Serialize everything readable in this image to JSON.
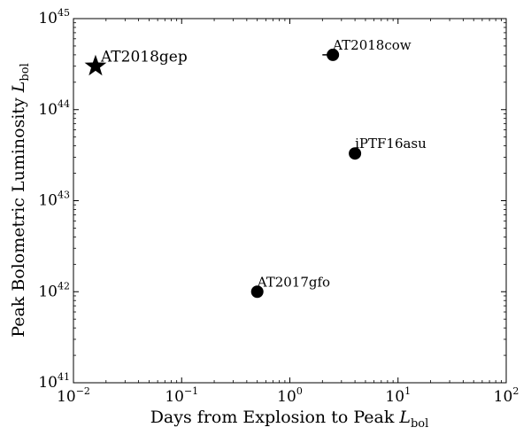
{
  "chart_data": {
    "type": "scatter",
    "xscale": "log",
    "yscale": "log",
    "xlim": [
      0.01,
      100
    ],
    "ylim": [
      1e+41,
      1e+45
    ],
    "xlabel": "Days from Explosion to Peak",
    "xlabel_symbol": "L",
    "xlabel_subscript": "bol",
    "ylabel": "Peak Bolometric Luminosity",
    "ylabel_symbol": "L",
    "ylabel_subscript": "bol",
    "x_ticks": [
      {
        "value": 0.01,
        "base": "10",
        "exp": "−2"
      },
      {
        "value": 0.1,
        "base": "10",
        "exp": "−1"
      },
      {
        "value": 1,
        "base": "10",
        "exp": "0"
      },
      {
        "value": 10,
        "base": "10",
        "exp": "1"
      },
      {
        "value": 100,
        "base": "10",
        "exp": "2"
      }
    ],
    "y_ticks": [
      {
        "value": 1e+41,
        "base": "10",
        "exp": "41"
      },
      {
        "value": 1e+42,
        "base": "10",
        "exp": "42"
      },
      {
        "value": 1e+43,
        "base": "10",
        "exp": "43"
      },
      {
        "value": 1e+44,
        "base": "10",
        "exp": "44"
      },
      {
        "value": 1e+45,
        "base": "10",
        "exp": "45"
      }
    ],
    "points": [
      {
        "label": "AT2018gep",
        "x": 0.016,
        "y": 3e+44,
        "marker": "star",
        "color": "#000000"
      },
      {
        "label": "AT2018cow",
        "x": 2.5,
        "y": 4e+44,
        "marker": "circle",
        "color": "#000000",
        "x_err_low": 0.5
      },
      {
        "label": "iPTF16asu",
        "x": 4.0,
        "y": 3.3e+43,
        "marker": "circle",
        "color": "#000000"
      },
      {
        "label": "AT2017gfo",
        "x": 0.5,
        "y": 1e+42,
        "marker": "circle",
        "color": "#000000"
      }
    ],
    "grid": false,
    "legend": false
  }
}
